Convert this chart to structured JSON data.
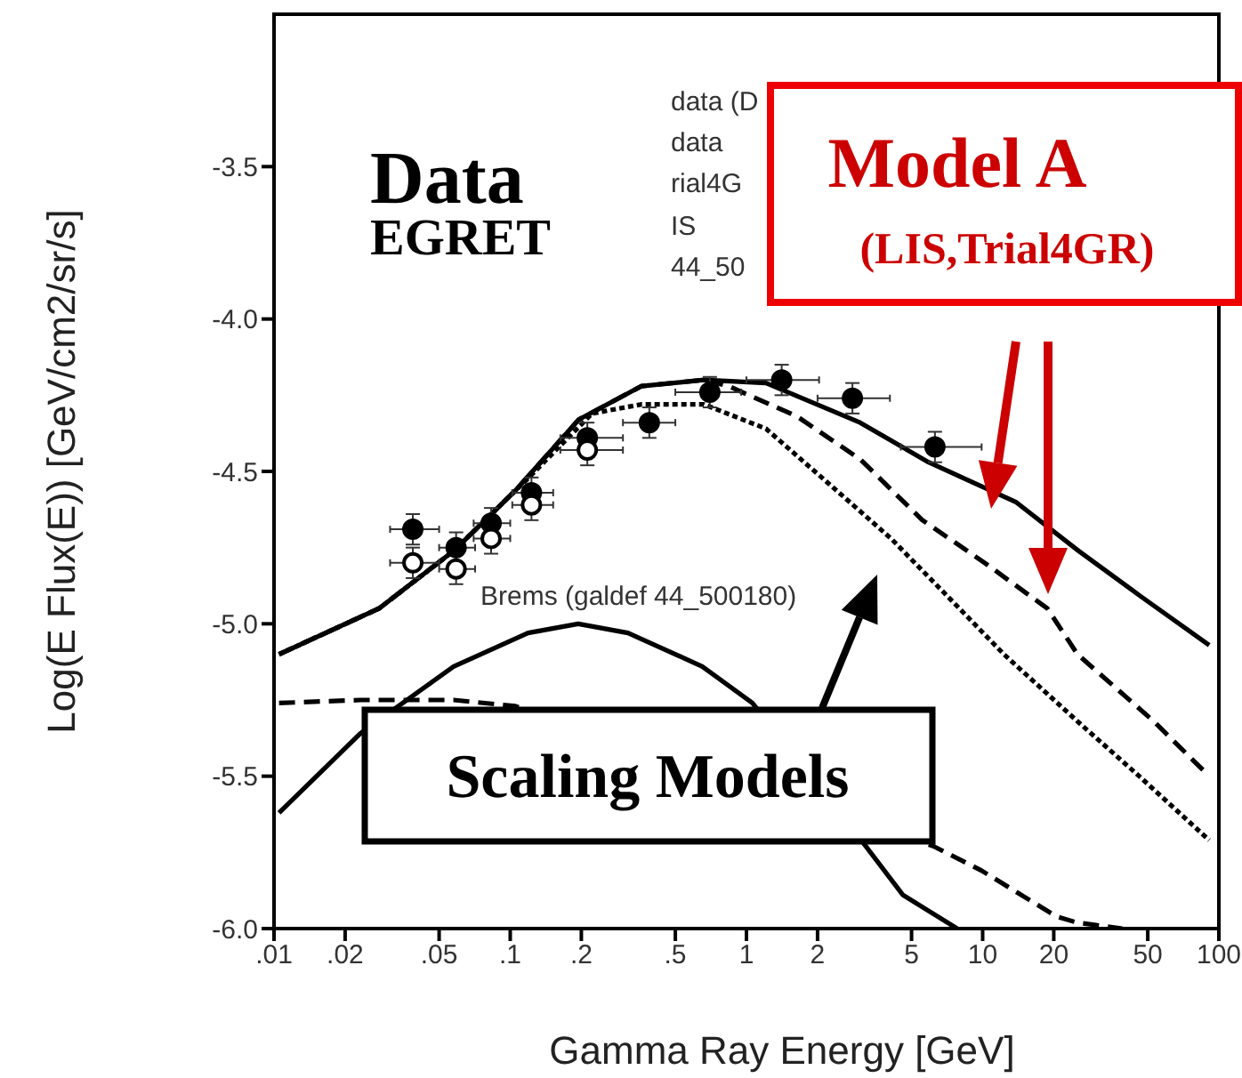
{
  "chart_data": {
    "type": "line",
    "xlabel": "Gamma Ray  Energy [GeV]",
    "ylabel": "Log(E Flux(E)) [GeV/cm2/sr/s]",
    "log": "x",
    "xlim": [
      0.01,
      100
    ],
    "ylim": [
      -6,
      -3
    ],
    "xticks": [
      {
        "value": 0.01,
        "label": ".01"
      },
      {
        "value": 0.02,
        "label": ".02"
      },
      {
        "value": 0.05,
        "label": ".05"
      },
      {
        "value": 0.1,
        "label": ".1"
      },
      {
        "value": 0.2,
        "label": ".2"
      },
      {
        "value": 0.5,
        "label": ".5"
      },
      1,
      2,
      5,
      10,
      20,
      50,
      100
    ],
    "yticks": [
      {
        "value": -6,
        "label": "-6.0"
      },
      -5.5,
      {
        "value": -5,
        "label": "-5.0"
      },
      -4.5,
      {
        "value": -4,
        "label": "-4.0"
      },
      -3.5
    ],
    "series": [
      {
        "color": "#000000",
        "line_style": "solid",
        "x": [
          0.0105,
          0.0278,
          0.0578,
          0.106,
          0.195,
          0.36,
          0.66,
          1.21,
          3.03,
          5.9,
          13.8,
          25.4,
          46.7,
          91
        ],
        "values": [
          -5.1,
          -4.95,
          -4.76,
          -4.56,
          -4.33,
          -4.22,
          -4.2,
          -4.21,
          -4.34,
          -4.47,
          -4.6,
          -4.76,
          -4.91,
          -5.07
        ]
      },
      {
        "color": "#000000",
        "line_style": "dashed",
        "x": [
          0.0105,
          0.0278,
          0.0578,
          0.106,
          0.195,
          0.36,
          0.66,
          0.84,
          1.64,
          3.03,
          5.56,
          10.2,
          18.8,
          25.2,
          53,
          91
        ],
        "values": [
          -5.1,
          -4.95,
          -4.76,
          -4.56,
          -4.33,
          -4.22,
          -4.2,
          -4.22,
          -4.32,
          -4.46,
          -4.66,
          -4.8,
          -4.95,
          -5.1,
          -5.32,
          -5.5
        ]
      },
      {
        "color": "#000000",
        "line_style": "dotted",
        "x": [
          0.0105,
          0.0278,
          0.0578,
          0.12,
          0.222,
          0.36,
          0.66,
          1.21,
          2.23,
          4.09,
          7.53,
          12.3,
          25.2,
          46,
          91
        ],
        "values": [
          -5.1,
          -4.95,
          -4.76,
          -4.52,
          -4.31,
          -4.28,
          -4.28,
          -4.36,
          -4.54,
          -4.72,
          -4.93,
          -5.1,
          -5.32,
          -5.5,
          -5.71
        ]
      },
      {
        "color": "#000000",
        "line_style": "solid",
        "x": [
          0.0105,
          0.0232,
          0.0576,
          0.119,
          0.194,
          0.315,
          0.65,
          1.06,
          3.2,
          4.6,
          7.8
        ],
        "values": [
          -5.62,
          -5.36,
          -5.14,
          -5.03,
          -5.0,
          -5.03,
          -5.14,
          -5.26,
          -5.73,
          -5.89,
          -6.0
        ]
      },
      {
        "color": "#000000",
        "line_style": "dashed",
        "x": [
          0.0105,
          0.0232,
          0.0576,
          0.105,
          6.2,
          9.9,
          20.5,
          25,
          39
        ],
        "values": [
          -5.26,
          -5.25,
          -5.25,
          -5.27,
          -5.73,
          -5.81,
          -5.96,
          -5.98,
          -6.0
        ]
      },
      {
        "type": "scatter",
        "color": "#000000",
        "marker": "circle",
        "x": [
          0.0387,
          0.059,
          0.083,
          0.123,
          0.212,
          0.388,
          0.7,
          1.41,
          2.81,
          6.28
        ],
        "values": [
          -4.69,
          -4.75,
          -4.67,
          -4.57,
          -4.39,
          -4.34,
          -4.24,
          -4.2,
          -4.26,
          -4.42
        ],
        "errors": [
          0.05,
          0.05,
          0.05,
          0.05,
          0.05,
          0.05,
          0.05,
          0.05,
          0.05,
          0.05
        ],
        "xerrors": [
          [
            0.031,
            0.05
          ],
          [
            0.05,
            0.071
          ],
          [
            0.07,
            0.1
          ],
          [
            0.102,
            0.152
          ],
          [
            0.163,
            0.3
          ],
          [
            0.3,
            0.5
          ],
          [
            0.5,
            0.95
          ],
          [
            1.0,
            2.03
          ],
          [
            2.0,
            4.05
          ],
          [
            4.5,
            9.9
          ]
        ]
      },
      {
        "type": "scatter",
        "color": "#000000",
        "marker": "circle",
        "x": [
          0.0387,
          0.059,
          0.083,
          0.123,
          0.212
        ],
        "values": [
          -4.8,
          -4.82,
          -4.72,
          -4.61,
          -4.43
        ],
        "errors": [
          0.05,
          0.05,
          0.05,
          0.05,
          0.05
        ],
        "xerrors": [
          [
            0.031,
            0.05
          ],
          [
            0.05,
            0.071
          ],
          [
            0.07,
            0.1
          ],
          [
            0.102,
            0.152
          ],
          [
            0.163,
            0.3
          ]
        ]
      }
    ],
    "annotations": [
      "Data",
      "EGRET",
      "data (D",
      "data",
      "rial4G",
      "IS",
      "44_50",
      "Brems (galdef 44_500180)",
      "Model A",
      "(LIS,Trial4GR)",
      "Scaling Models"
    ]
  }
}
